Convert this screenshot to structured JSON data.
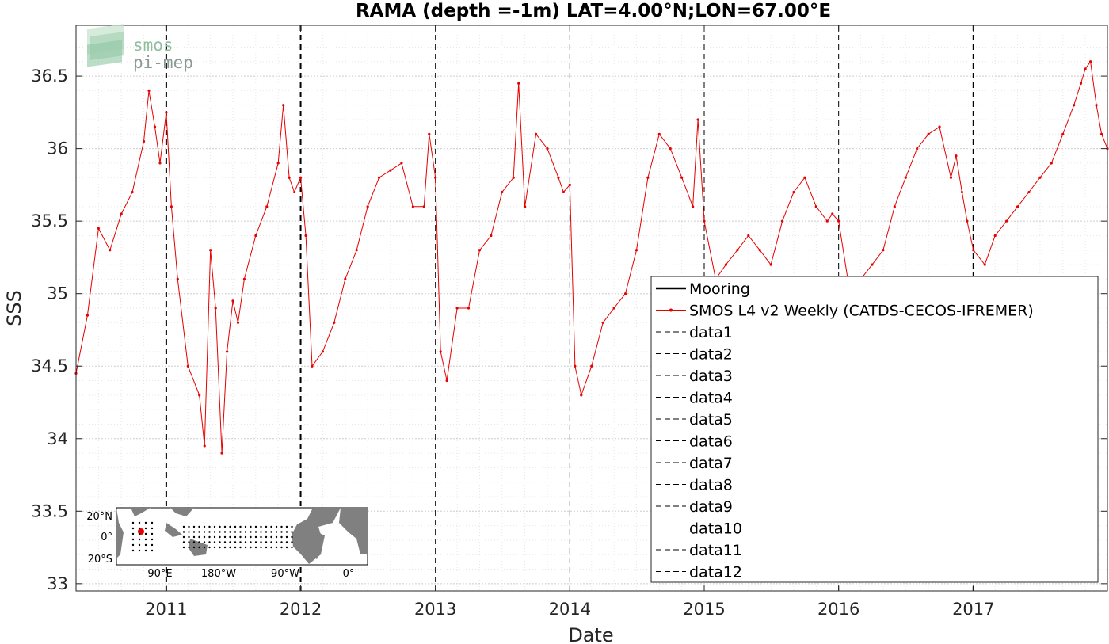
{
  "chart_data": {
    "type": "line",
    "title": "RAMA (depth =-1m) LAT=4.00°N;LON=67.00°E",
    "xlabel": "Date",
    "ylabel": "SSS",
    "xlim": [
      "2010-05-01",
      "2017-12-31"
    ],
    "ylim": [
      32.95,
      36.85
    ],
    "xticks": [
      "2011",
      "2012",
      "2013",
      "2014",
      "2015",
      "2016",
      "2017"
    ],
    "yticks": [
      "33",
      "33.5",
      "34",
      "34.5",
      "35",
      "35.5",
      "36",
      "36.5"
    ],
    "ytick_values": [
      33,
      33.5,
      34,
      34.5,
      35,
      35.5,
      36,
      36.5
    ],
    "grid": true,
    "minor_grid": true,
    "legend_position": "bottom-right",
    "legend": [
      {
        "label": "Mooring",
        "style": "solid",
        "color": "#000000"
      },
      {
        "label": "SMOS L4 v2 Weekly (CATDS-CECOS-IFREMER)",
        "style": "line-dots",
        "color": "#e60000"
      },
      {
        "label": "data1",
        "style": "dashed",
        "color": "#000000"
      },
      {
        "label": "data2",
        "style": "dashed",
        "color": "#000000"
      },
      {
        "label": "data3",
        "style": "dashed",
        "color": "#000000"
      },
      {
        "label": "data4",
        "style": "dashed",
        "color": "#000000"
      },
      {
        "label": "data5",
        "style": "dashed",
        "color": "#000000"
      },
      {
        "label": "data6",
        "style": "dashed",
        "color": "#000000"
      },
      {
        "label": "data7",
        "style": "dashed",
        "color": "#000000"
      },
      {
        "label": "data8",
        "style": "dashed",
        "color": "#000000"
      },
      {
        "label": "data9",
        "style": "dashed",
        "color": "#000000"
      },
      {
        "label": "data10",
        "style": "dashed",
        "color": "#000000"
      },
      {
        "label": "data11",
        "style": "dashed",
        "color": "#000000"
      },
      {
        "label": "data12",
        "style": "dashed",
        "color": "#000000"
      }
    ],
    "vertical_lines": [
      {
        "date": "2011-01-01",
        "style": "bold-dashed"
      },
      {
        "date": "2012-01-01",
        "style": "bold-dashed"
      },
      {
        "date": "2013-01-01",
        "style": "dashed"
      },
      {
        "date": "2014-01-01",
        "style": "dashed"
      },
      {
        "date": "2015-01-01",
        "style": "dashed"
      },
      {
        "date": "2016-01-01",
        "style": "dashed"
      },
      {
        "date": "2017-01-01",
        "style": "bold-dashed"
      }
    ],
    "series": [
      {
        "name": "SMOS L4 v2 Weekly (CATDS-CECOS-IFREMER)",
        "color": "#e60000",
        "x": [
          "2010-05-01",
          "2010-06-01",
          "2010-07-01",
          "2010-08-01",
          "2010-09-01",
          "2010-10-01",
          "2010-11-01",
          "2010-11-15",
          "2010-12-01",
          "2010-12-15",
          "2011-01-01",
          "2011-01-15",
          "2011-02-01",
          "2011-03-01",
          "2011-04-01",
          "2011-04-15",
          "2011-05-01",
          "2011-05-15",
          "2011-06-01",
          "2011-06-15",
          "2011-07-01",
          "2011-07-15",
          "2011-08-01",
          "2011-09-01",
          "2011-10-01",
          "2011-11-01",
          "2011-11-15",
          "2011-12-01",
          "2011-12-15",
          "2012-01-01",
          "2012-01-15",
          "2012-02-01",
          "2012-03-01",
          "2012-04-01",
          "2012-05-01",
          "2012-06-01",
          "2012-07-01",
          "2012-08-01",
          "2012-09-01",
          "2012-10-01",
          "2012-11-01",
          "2012-12-01",
          "2012-12-15",
          "2013-01-01",
          "2013-01-15",
          "2013-02-01",
          "2013-03-01",
          "2013-04-01",
          "2013-05-01",
          "2013-06-01",
          "2013-07-01",
          "2013-08-01",
          "2013-08-15",
          "2013-09-01",
          "2013-10-01",
          "2013-11-01",
          "2013-12-01",
          "2013-12-15",
          "2014-01-01",
          "2014-01-15",
          "2014-02-01",
          "2014-03-01",
          "2014-04-01",
          "2014-05-01",
          "2014-06-01",
          "2014-07-01",
          "2014-08-01",
          "2014-09-01",
          "2014-10-01",
          "2014-11-01",
          "2014-12-01",
          "2014-12-15",
          "2015-01-01",
          "2015-02-01",
          "2015-03-01",
          "2015-04-01",
          "2015-05-01",
          "2015-06-01",
          "2015-07-01",
          "2015-08-01",
          "2015-09-01",
          "2015-10-01",
          "2015-11-01",
          "2015-12-01",
          "2015-12-15",
          "2016-01-01",
          "2016-02-01",
          "2016-03-01",
          "2016-04-01",
          "2016-05-01",
          "2016-06-01",
          "2016-07-01",
          "2016-08-01",
          "2016-09-01",
          "2016-10-01",
          "2016-11-01",
          "2016-11-15",
          "2016-12-01",
          "2016-12-15",
          "2017-01-01",
          "2017-02-01",
          "2017-03-01",
          "2017-04-01",
          "2017-05-01",
          "2017-06-01",
          "2017-07-01",
          "2017-08-01",
          "2017-09-01",
          "2017-10-01",
          "2017-10-20",
          "2017-11-01",
          "2017-11-15",
          "2017-12-01",
          "2017-12-15",
          "2017-12-31"
        ],
        "y": [
          34.45,
          34.85,
          35.45,
          35.3,
          35.55,
          35.7,
          36.05,
          36.4,
          36.15,
          35.9,
          36.25,
          35.6,
          35.1,
          34.5,
          34.3,
          33.95,
          35.3,
          34.9,
          33.9,
          34.6,
          34.95,
          34.8,
          35.1,
          35.4,
          35.6,
          35.9,
          36.3,
          35.8,
          35.7,
          35.8,
          35.4,
          34.5,
          34.6,
          34.8,
          35.1,
          35.3,
          35.6,
          35.8,
          35.85,
          35.9,
          35.6,
          35.6,
          36.1,
          35.8,
          34.6,
          34.4,
          34.9,
          34.9,
          35.3,
          35.4,
          35.7,
          35.8,
          36.45,
          35.6,
          36.1,
          36.0,
          35.8,
          35.7,
          35.75,
          34.5,
          34.3,
          34.5,
          34.8,
          34.9,
          35.0,
          35.3,
          35.8,
          36.1,
          36.0,
          35.8,
          35.6,
          36.2,
          35.5,
          35.1,
          35.2,
          35.3,
          35.4,
          35.3,
          35.2,
          35.5,
          35.7,
          35.8,
          35.6,
          35.5,
          35.55,
          35.5,
          35.0,
          35.1,
          35.2,
          35.3,
          35.6,
          35.8,
          36.0,
          36.1,
          36.15,
          35.8,
          35.95,
          35.7,
          35.5,
          35.3,
          35.2,
          35.4,
          35.5,
          35.6,
          35.7,
          35.8,
          35.9,
          36.1,
          36.3,
          36.45,
          36.55,
          36.6,
          36.3,
          36.1,
          36.0
        ]
      }
    ]
  },
  "inset_map": {
    "ytick_labels": [
      "20°N",
      "0°",
      "20°S"
    ],
    "xtick_labels": [
      "90°E",
      "180°W",
      "90°W",
      "0°"
    ]
  },
  "logo": {
    "line1": "smos",
    "line2": "pi-mep"
  },
  "colors": {
    "series": "#e60000",
    "grid": "#d9d9d9",
    "land": "#808080"
  }
}
